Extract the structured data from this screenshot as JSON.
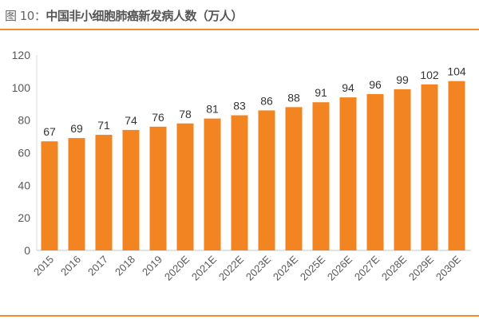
{
  "header": {
    "figure_label": "图 10：",
    "title": "中国非小细胞肺癌新发病人数（万人）"
  },
  "colors": {
    "bar": "#f28522",
    "accent_rule": "#f28c28",
    "axis": "#d9d9d9",
    "text": "#595959"
  },
  "chart_data": {
    "type": "bar",
    "title": "中国非小细胞肺癌新发病人数（万人）",
    "xlabel": "",
    "ylabel": "",
    "categories": [
      "2015",
      "2016",
      "2017",
      "2018",
      "2019",
      "2020E",
      "2021E",
      "2022E",
      "2023E",
      "2024E",
      "2025E",
      "2026E",
      "2027E",
      "2028E",
      "2029E",
      "2030E"
    ],
    "values": [
      67,
      69,
      71,
      74,
      76,
      78,
      81,
      83,
      86,
      88,
      91,
      94,
      96,
      99,
      102,
      104
    ],
    "ylim": [
      0,
      120
    ],
    "yticks": [
      0,
      20,
      40,
      60,
      80,
      100,
      120
    ],
    "grid": false,
    "data_labels": true,
    "legend": "none"
  }
}
